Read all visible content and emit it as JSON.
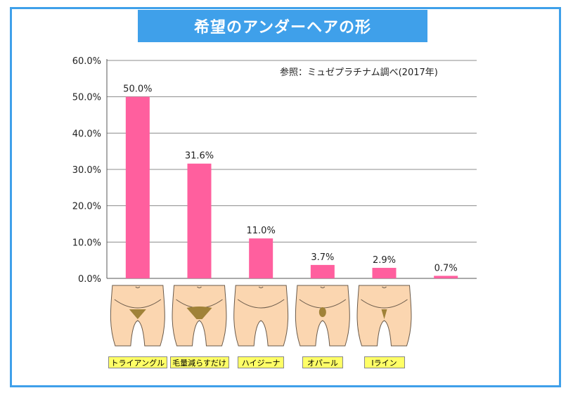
{
  "title": "希望のアンダーヘアの形",
  "source_note": "参照：ミュゼプラチナム調べ(2017年)",
  "colors": {
    "accent": "#3fa0ea",
    "bar": "#ff5f9e",
    "label_bg": "#ffff66",
    "skin": "#fbd6b0",
    "hair": "#a08238"
  },
  "chart_data": {
    "type": "bar",
    "title": "希望のアンダーヘアの形",
    "xlabel": "",
    "ylabel": "",
    "ylim": [
      0,
      60
    ],
    "yticks": [
      "0.0%",
      "10.0%",
      "20.0%",
      "30.0%",
      "40.0%",
      "50.0%",
      "60.0%"
    ],
    "grid": true,
    "categories": [
      "トライアングル",
      "毛量減らすだけ",
      "ハイジーナ",
      "オパール",
      "Iライン",
      ""
    ],
    "values": [
      50.0,
      31.6,
      11.0,
      3.7,
      2.9,
      0.7
    ],
    "data_labels": [
      "50.0%",
      "31.6%",
      "11.0%",
      "3.7%",
      "2.9%",
      "0.7%"
    ],
    "illustration_icons": [
      "triangle-hair-icon",
      "reduced-hair-icon",
      "hygiene-hair-icon",
      "opal-hair-icon",
      "i-line-hair-icon"
    ]
  }
}
